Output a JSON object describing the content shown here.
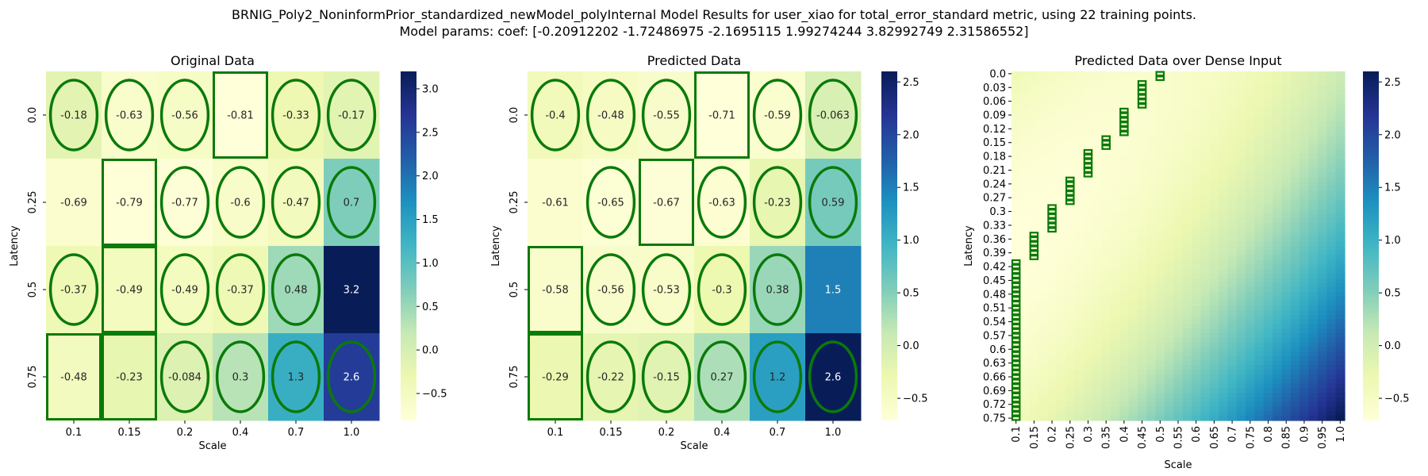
{
  "figure": {
    "title_line1": "BRNIG_Poly2_NoninformPrior_standardized_newModel_polyInternal Model Results for user_xiao for total_error_standard metric, using 22 training points.",
    "title_line2": "Model params: coef: [-0.20912202 -1.72486975 -2.1695115   1.99274244  3.82992749  2.31586552]"
  },
  "colors": {
    "colormap": "YlGnBu",
    "stops": [
      "#ffffd9",
      "#edf8b1",
      "#c7e9b4",
      "#7fcdbb",
      "#41b6c4",
      "#1d91c0",
      "#225ea8",
      "#253494",
      "#081d58"
    ],
    "marker": "#0a7a0a"
  },
  "chart_data": [
    {
      "type": "heatmap",
      "title": "Original Data",
      "xlabel": "Scale",
      "ylabel": "Latency",
      "x_ticks": [
        "0.1",
        "0.15",
        "0.2",
        "0.4",
        "0.7",
        "1.0"
      ],
      "y_ticks": [
        "0.0",
        "0.25",
        "0.5",
        "0.75"
      ],
      "values": [
        [
          -0.18,
          -0.63,
          -0.56,
          -0.81,
          -0.33,
          -0.17
        ],
        [
          -0.69,
          -0.79,
          -0.77,
          -0.6,
          -0.47,
          0.7
        ],
        [
          -0.37,
          -0.49,
          -0.49,
          -0.37,
          0.48,
          3.2
        ],
        [
          -0.48,
          -0.23,
          -0.084,
          0.3,
          1.3,
          2.6
        ]
      ],
      "value_labels": [
        [
          "-0.18",
          "-0.63",
          "-0.56",
          "-0.81",
          "-0.33",
          "-0.17"
        ],
        [
          "-0.69",
          "-0.79",
          "-0.77",
          "-0.6",
          "-0.47",
          "0.7"
        ],
        [
          "-0.37",
          "-0.49",
          "-0.49",
          "-0.37",
          "0.48",
          "3.2"
        ],
        [
          "-0.48",
          "-0.23",
          "-0.084",
          "0.3",
          "1.3",
          "2.6"
        ]
      ],
      "markers": [
        [
          "ellipse",
          "ellipse",
          "ellipse",
          "rect",
          "ellipse",
          "ellipse"
        ],
        [
          "",
          "rect",
          "ellipse",
          "ellipse",
          "ellipse",
          "ellipse"
        ],
        [
          "ellipse",
          "rect",
          "ellipse",
          "ellipse",
          "ellipse",
          ""
        ],
        [
          "rect",
          "rect",
          "ellipse",
          "ellipse",
          "ellipse",
          "ellipse"
        ]
      ],
      "vmin": -0.81,
      "vmax": 3.2,
      "colorbar_ticks": [
        -0.5,
        0.0,
        0.5,
        1.0,
        1.5,
        2.0,
        2.5,
        3.0
      ],
      "colorbar_tick_labels": [
        "−0.5",
        "0.0",
        "0.5",
        "1.0",
        "1.5",
        "2.0",
        "2.5",
        "3.0"
      ]
    },
    {
      "type": "heatmap",
      "title": "Predicted Data",
      "xlabel": "Scale",
      "ylabel": "Latency",
      "x_ticks": [
        "0.1",
        "0.15",
        "0.2",
        "0.4",
        "0.7",
        "1.0"
      ],
      "y_ticks": [
        "0.0",
        "0.25",
        "0.5",
        "0.75"
      ],
      "values": [
        [
          -0.4,
          -0.48,
          -0.55,
          -0.71,
          -0.59,
          -0.063
        ],
        [
          -0.61,
          -0.65,
          -0.67,
          -0.63,
          -0.23,
          0.59
        ],
        [
          -0.58,
          -0.56,
          -0.53,
          -0.3,
          0.38,
          1.5
        ],
        [
          -0.29,
          -0.22,
          -0.15,
          0.27,
          1.2,
          2.6
        ]
      ],
      "value_labels": [
        [
          "-0.4",
          "-0.48",
          "-0.55",
          "-0.71",
          "-0.59",
          "-0.063"
        ],
        [
          "-0.61",
          "-0.65",
          "-0.67",
          "-0.63",
          "-0.23",
          "0.59"
        ],
        [
          "-0.58",
          "-0.56",
          "-0.53",
          "-0.3",
          "0.38",
          "1.5"
        ],
        [
          "-0.29",
          "-0.22",
          "-0.15",
          "0.27",
          "1.2",
          "2.6"
        ]
      ],
      "markers": [
        [
          "ellipse",
          "ellipse",
          "ellipse",
          "rect",
          "ellipse",
          "ellipse"
        ],
        [
          "",
          "ellipse",
          "rect",
          "ellipse",
          "ellipse",
          "ellipse"
        ],
        [
          "rect",
          "ellipse",
          "ellipse",
          "ellipse",
          "ellipse",
          ""
        ],
        [
          "rect",
          "ellipse",
          "ellipse",
          "ellipse",
          "ellipse",
          "ellipse"
        ]
      ],
      "vmin": -0.71,
      "vmax": 2.6,
      "colorbar_ticks": [
        -0.5,
        0.0,
        0.5,
        1.0,
        1.5,
        2.0,
        2.5
      ],
      "colorbar_tick_labels": [
        "−0.5",
        "0.0",
        "0.5",
        "1.0",
        "1.5",
        "2.0",
        "2.5"
      ]
    },
    {
      "type": "heatmap",
      "title": "Predicted Data over Dense Input",
      "xlabel": "Scale",
      "ylabel": "Latency",
      "x_ticks": [
        "0.1",
        "0.15",
        "0.2",
        "0.25",
        "0.3",
        "0.35",
        "0.4",
        "0.45",
        "0.5",
        "0.55",
        "0.6",
        "0.65",
        "0.7",
        "0.75",
        "0.8",
        "0.85",
        "0.9",
        "0.95",
        "1.0"
      ],
      "y_ticks": [
        "0.0",
        "0.03",
        "0.06",
        "0.09",
        "0.12",
        "0.15",
        "0.18",
        "0.21",
        "0.24",
        "0.27",
        "0.3",
        "0.33",
        "0.36",
        "0.39",
        "0.42",
        "0.45",
        "0.48",
        "0.51",
        "0.54",
        "0.57",
        "0.6",
        "0.63",
        "0.66",
        "0.69",
        "0.72",
        "0.75"
      ],
      "dense_columns": 37,
      "dense_rows": 76,
      "coef": [
        -0.20912202,
        -1.72486975,
        -2.1695115,
        1.99274244,
        3.82992749,
        2.31586552
      ],
      "argmin_x_by_latency": [
        [
          "0.0",
          "0.5"
        ],
        [
          "0.03",
          "0.45"
        ],
        [
          "0.06",
          "0.45"
        ],
        [
          "0.09",
          "0.4"
        ],
        [
          "0.12",
          "0.4"
        ],
        [
          "0.15",
          "0.35"
        ],
        [
          "0.18",
          "0.3"
        ],
        [
          "0.21",
          "0.3"
        ],
        [
          "0.24",
          "0.25"
        ],
        [
          "0.27",
          "0.25"
        ],
        [
          "0.3",
          "0.2"
        ],
        [
          "0.33",
          "0.2"
        ],
        [
          "0.36",
          "0.15"
        ],
        [
          "0.39",
          "0.15"
        ],
        [
          "0.42",
          "0.1"
        ],
        [
          "0.45",
          "0.1"
        ],
        [
          "0.48",
          "0.1"
        ],
        [
          "0.51",
          "0.1"
        ],
        [
          "0.54",
          "0.1"
        ],
        [
          "0.57",
          "0.1"
        ],
        [
          "0.6",
          "0.1"
        ],
        [
          "0.63",
          "0.1"
        ],
        [
          "0.66",
          "0.1"
        ],
        [
          "0.69",
          "0.1"
        ],
        [
          "0.72",
          "0.1"
        ],
        [
          "0.75",
          "0.1"
        ]
      ],
      "vmin": -0.71,
      "vmax": 2.6,
      "colorbar_ticks": [
        -0.5,
        0.0,
        0.5,
        1.0,
        1.5,
        2.0,
        2.5
      ],
      "colorbar_tick_labels": [
        "−0.5",
        "0.0",
        "0.5",
        "1.0",
        "1.5",
        "2.0",
        "2.5"
      ]
    }
  ]
}
